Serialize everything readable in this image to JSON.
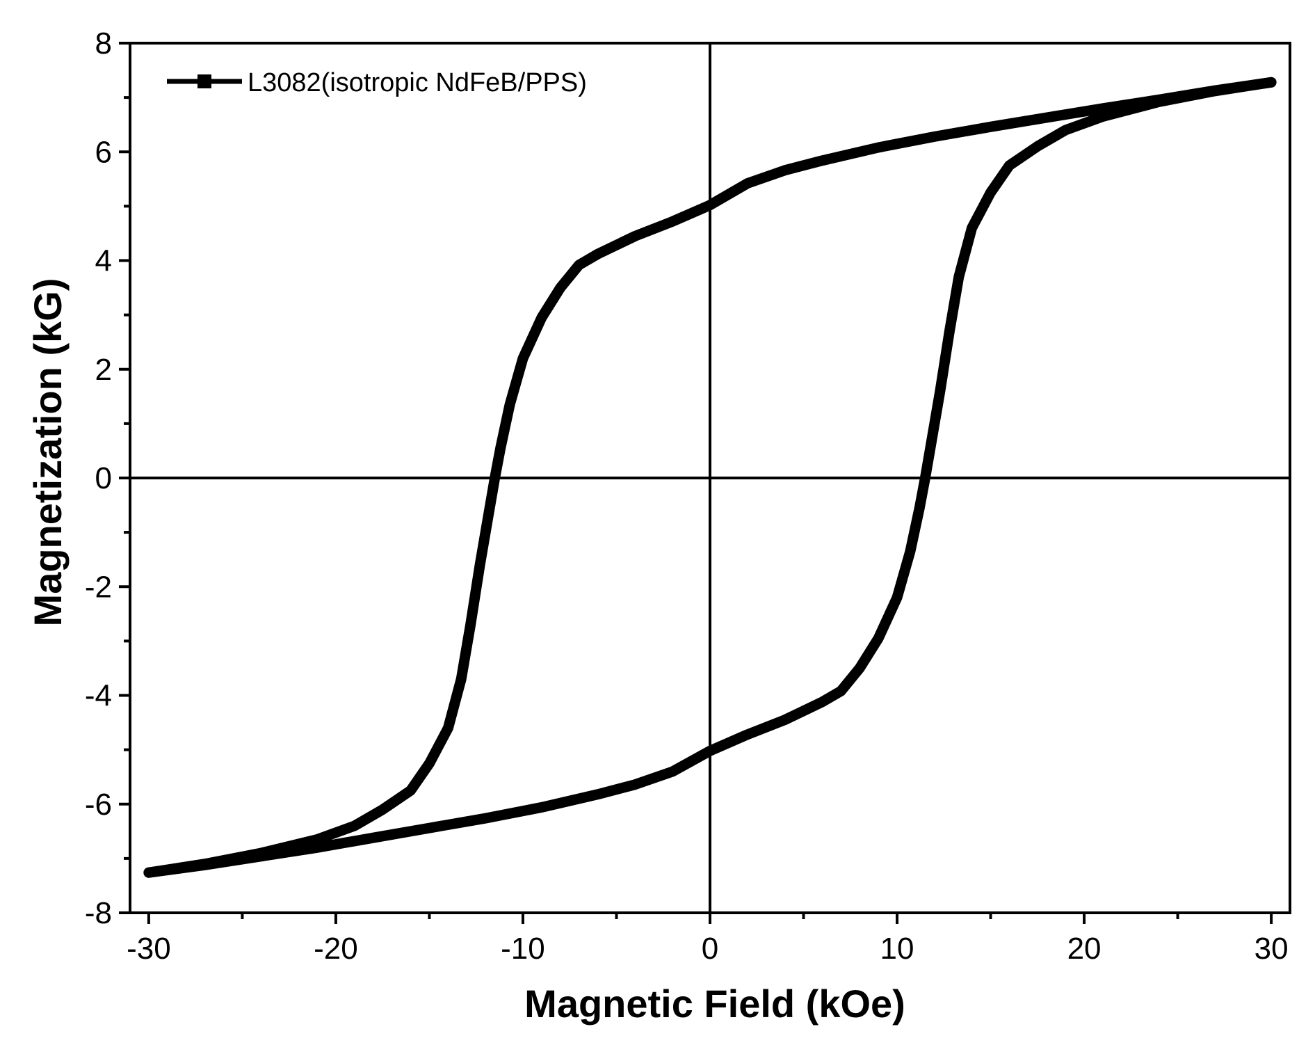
{
  "chart_data": {
    "type": "line",
    "title": "",
    "xlabel": "Magnetic Field (kOe)",
    "ylabel": "Magnetization (kG)",
    "xlim": [
      -31,
      31
    ],
    "ylim": [
      -8,
      8
    ],
    "x_ticks": [
      -30,
      -20,
      -10,
      0,
      10,
      20,
      30
    ],
    "y_ticks": [
      -8,
      -6,
      -4,
      -2,
      0,
      2,
      4,
      6,
      8
    ],
    "x_minor_step": 5,
    "y_minor_step": 1,
    "zero_lines": true,
    "grid": false,
    "legend_position": "top-left",
    "series": [
      {
        "name": "L3082(isotropic NdFeB/PPS)",
        "color": "#000000",
        "marker": "square",
        "branches": [
          {
            "id": "descending",
            "points": [
              [
                30,
                7.28
              ],
              [
                27,
                7.13
              ],
              [
                24,
                6.96
              ],
              [
                21,
                6.8
              ],
              [
                18,
                6.63
              ],
              [
                15,
                6.46
              ],
              [
                12,
                6.28
              ],
              [
                9,
                6.08
              ],
              [
                6,
                5.84
              ],
              [
                4,
                5.66
              ],
              [
                2,
                5.42
              ],
              [
                0,
                5.02
              ],
              [
                -2,
                4.72
              ],
              [
                -4,
                4.45
              ],
              [
                -6,
                4.12
              ],
              [
                -7,
                3.92
              ],
              [
                -8,
                3.5
              ],
              [
                -9,
                2.95
              ],
              [
                -10,
                2.2
              ],
              [
                -10.7,
                1.35
              ],
              [
                -11.2,
                0.55
              ],
              [
                -11.5,
                0.0
              ],
              [
                -11.8,
                -0.6
              ],
              [
                -12.3,
                -1.6
              ],
              [
                -12.8,
                -2.7
              ],
              [
                -13.3,
                -3.7
              ],
              [
                -14,
                -4.6
              ],
              [
                -15,
                -5.25
              ],
              [
                -16,
                -5.75
              ],
              [
                -17.5,
                -6.1
              ],
              [
                -19,
                -6.4
              ],
              [
                -21,
                -6.65
              ],
              [
                -24,
                -6.9
              ],
              [
                -27,
                -7.1
              ],
              [
                -30,
                -7.26
              ]
            ]
          },
          {
            "id": "ascending",
            "points": [
              [
                -30,
                -7.26
              ],
              [
                -27,
                -7.12
              ],
              [
                -24,
                -6.96
              ],
              [
                -21,
                -6.8
              ],
              [
                -18,
                -6.62
              ],
              [
                -15,
                -6.44
              ],
              [
                -12,
                -6.26
              ],
              [
                -9,
                -6.06
              ],
              [
                -6,
                -5.82
              ],
              [
                -4,
                -5.64
              ],
              [
                -2,
                -5.4
              ],
              [
                0,
                -5.02
              ],
              [
                2,
                -4.72
              ],
              [
                4,
                -4.45
              ],
              [
                6,
                -4.12
              ],
              [
                7,
                -3.92
              ],
              [
                8,
                -3.5
              ],
              [
                9,
                -2.95
              ],
              [
                10,
                -2.2
              ],
              [
                10.7,
                -1.35
              ],
              [
                11.2,
                -0.55
              ],
              [
                11.5,
                0.0
              ],
              [
                11.8,
                0.6
              ],
              [
                12.3,
                1.6
              ],
              [
                12.8,
                2.7
              ],
              [
                13.3,
                3.7
              ],
              [
                14,
                4.6
              ],
              [
                15,
                5.25
              ],
              [
                16,
                5.75
              ],
              [
                17.5,
                6.1
              ],
              [
                19,
                6.4
              ],
              [
                21,
                6.65
              ],
              [
                24,
                6.92
              ],
              [
                27,
                7.12
              ],
              [
                30,
                7.28
              ]
            ]
          }
        ]
      }
    ]
  }
}
